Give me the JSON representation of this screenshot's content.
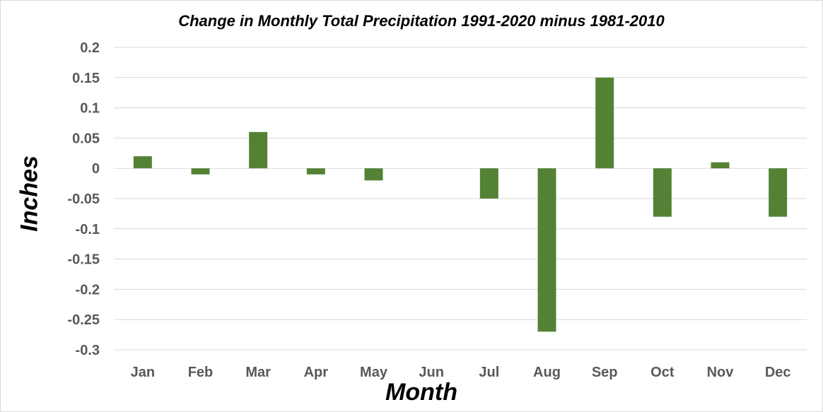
{
  "chart_data": {
    "type": "bar",
    "title": "Change in Monthly Total Precipitation 1991-2020 minus 1981-2010",
    "xlabel": "Month",
    "ylabel": "Inches",
    "categories": [
      "Jan",
      "Feb",
      "Mar",
      "Apr",
      "May",
      "Jun",
      "Jul",
      "Aug",
      "Sep",
      "Oct",
      "Nov",
      "Dec"
    ],
    "values": [
      0.02,
      -0.01,
      0.06,
      -0.01,
      -0.02,
      0.0,
      -0.05,
      -0.27,
      0.15,
      -0.08,
      0.01,
      -0.08
    ],
    "ylim": [
      -0.3,
      0.2
    ],
    "yticks": [
      0.2,
      0.15,
      0.1,
      0.05,
      0,
      -0.05,
      -0.1,
      -0.15,
      -0.2,
      -0.25,
      -0.3
    ],
    "ytick_labels": [
      "0.2",
      "0.15",
      "0.1",
      "0.05",
      "0",
      "-0.05",
      "-0.1",
      "-0.15",
      "-0.2",
      "-0.25",
      "-0.3"
    ],
    "grid": true,
    "legend": "none",
    "bar_color": "#548235",
    "grid_color": "#d9d9d9",
    "tick_label_color": "#595959"
  }
}
